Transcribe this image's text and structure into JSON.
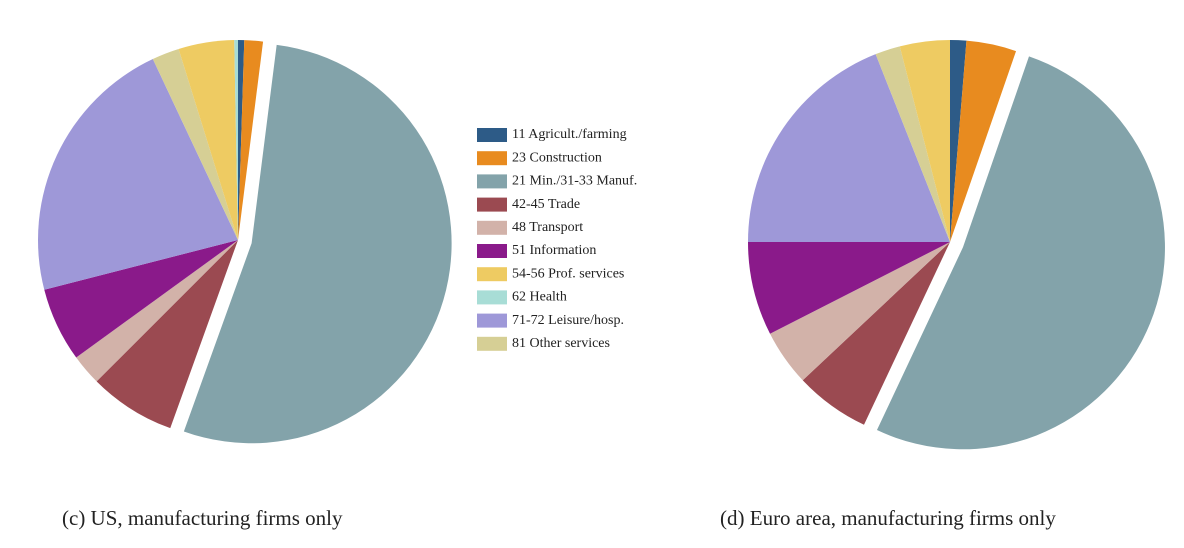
{
  "chart_data": [
    {
      "type": "pie",
      "title": "(c) US, manufacturing firms only",
      "categories": [
        "11 Agricult./farming",
        "23 Construction",
        "21 Min./31-33 Manuf.",
        "42-45 Trade",
        "48 Transport",
        "51 Information",
        "54-56 Prof. services",
        "62 Health",
        "71-72 Leisure/hosp.",
        "81 Other services"
      ],
      "colors": [
        "#2d5b87",
        "#e88b1f",
        "#83a3aa",
        "#9b4a51",
        "#d2b2a9",
        "#8a1a8a",
        "#eecb62",
        "#a8ddd6",
        "#9e98d8",
        "#d6cf95"
      ],
      "values": [
        0.5,
        1.5,
        53.5,
        7,
        2.5,
        6,
        4.5,
        0.3,
        22,
        2.2
      ]
    },
    {
      "type": "pie",
      "title": "(d) Euro area, manufacturing firms only",
      "values": [
        1.3,
        4,
        51.7,
        6,
        4.5,
        7.5,
        4,
        0,
        19,
        2
      ]
    }
  ]
}
